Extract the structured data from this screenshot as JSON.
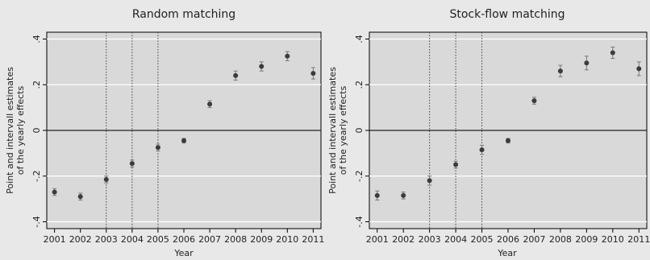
{
  "ylabel_lines": [
    "Point and intervall estimates",
    "of the yearly effects"
  ],
  "chart_data": [
    {
      "type": "scatter",
      "title": "Random matching",
      "xlabel": "Year",
      "x": [
        2001,
        2002,
        2003,
        2004,
        2005,
        2006,
        2007,
        2008,
        2009,
        2010,
        2011
      ],
      "y": [
        -0.27,
        -0.29,
        -0.215,
        -0.145,
        -0.075,
        -0.045,
        0.115,
        0.24,
        0.28,
        0.325,
        0.25
      ],
      "ci_low": [
        -0.285,
        -0.305,
        -0.23,
        -0.16,
        -0.09,
        -0.055,
        0.1,
        0.22,
        0.26,
        0.305,
        0.225
      ],
      "ci_high": [
        -0.255,
        -0.275,
        -0.2,
        -0.13,
        -0.06,
        -0.035,
        0.13,
        0.26,
        0.3,
        0.345,
        0.275
      ],
      "xticks": [
        "2001",
        "2002",
        "2003",
        "2004",
        "2005",
        "2006",
        "2007",
        "2008",
        "2009",
        "2010",
        "2011"
      ],
      "yticks": [
        -0.4,
        -0.2,
        0,
        0.2,
        0.4
      ],
      "ytick_labels": [
        "-.4",
        "-.2",
        "0",
        ".2",
        ".4"
      ],
      "xlim": [
        2000.7,
        2011.3
      ],
      "ylim": [
        -0.43,
        0.43
      ],
      "vlines": [
        2003,
        2004,
        2005
      ],
      "hline": 0,
      "grid": true
    },
    {
      "type": "scatter",
      "title": "Stock-flow matching",
      "xlabel": "Year",
      "x": [
        2001,
        2002,
        2003,
        2004,
        2005,
        2006,
        2007,
        2008,
        2009,
        2010,
        2011
      ],
      "y": [
        -0.285,
        -0.285,
        -0.22,
        -0.15,
        -0.085,
        -0.045,
        0.13,
        0.26,
        0.295,
        0.34,
        0.27
      ],
      "ci_low": [
        -0.305,
        -0.3,
        -0.24,
        -0.165,
        -0.105,
        -0.055,
        0.115,
        0.235,
        0.265,
        0.315,
        0.24
      ],
      "ci_high": [
        -0.265,
        -0.27,
        -0.2,
        -0.135,
        -0.065,
        -0.035,
        0.145,
        0.285,
        0.325,
        0.365,
        0.3
      ],
      "xticks": [
        "2001",
        "2002",
        "2003",
        "2004",
        "2005",
        "2006",
        "2007",
        "2008",
        "2009",
        "2010",
        "2011"
      ],
      "yticks": [
        -0.4,
        -0.2,
        0,
        0.2,
        0.4
      ],
      "ytick_labels": [
        "-.4",
        "-.2",
        "0",
        ".2",
        ".4"
      ],
      "xlim": [
        2000.7,
        2011.3
      ],
      "ylim": [
        -0.43,
        0.43
      ],
      "vlines": [
        2003,
        2004,
        2005
      ],
      "hline": 0,
      "grid": true
    }
  ]
}
